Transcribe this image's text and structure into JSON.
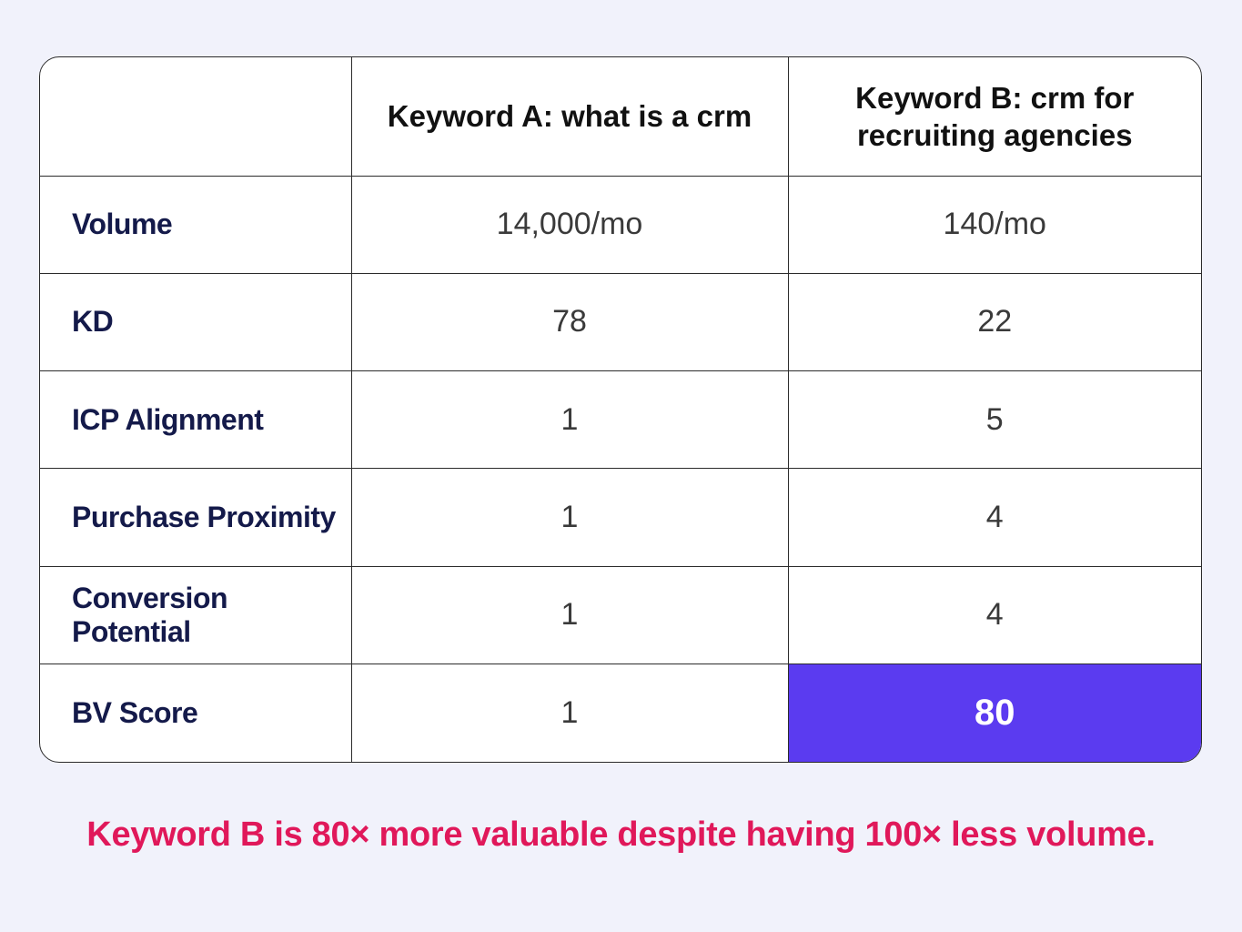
{
  "table": {
    "headers": [
      "",
      "Keyword A: what is a crm",
      "Keyword B: crm for recruiting agencies"
    ],
    "rows": [
      {
        "label": "Volume",
        "a": "14,000/mo",
        "b": "140/mo"
      },
      {
        "label": "KD",
        "a": "78",
        "b": "22"
      },
      {
        "label": "ICP Alignment",
        "a": "1",
        "b": "5"
      },
      {
        "label": "Purchase Proximity",
        "a": "1",
        "b": "4"
      },
      {
        "label": "Conversion Potential",
        "a": "1",
        "b": "4"
      },
      {
        "label": "BV Score",
        "a": "1",
        "b": "80"
      }
    ],
    "highlight_color": "#5b3bf0"
  },
  "caption": "Keyword B is 80× more valuable despite having 100× less volume.",
  "colors": {
    "background": "#f1f2fb",
    "caption": "#e0185a",
    "row_label": "#141a4a"
  }
}
